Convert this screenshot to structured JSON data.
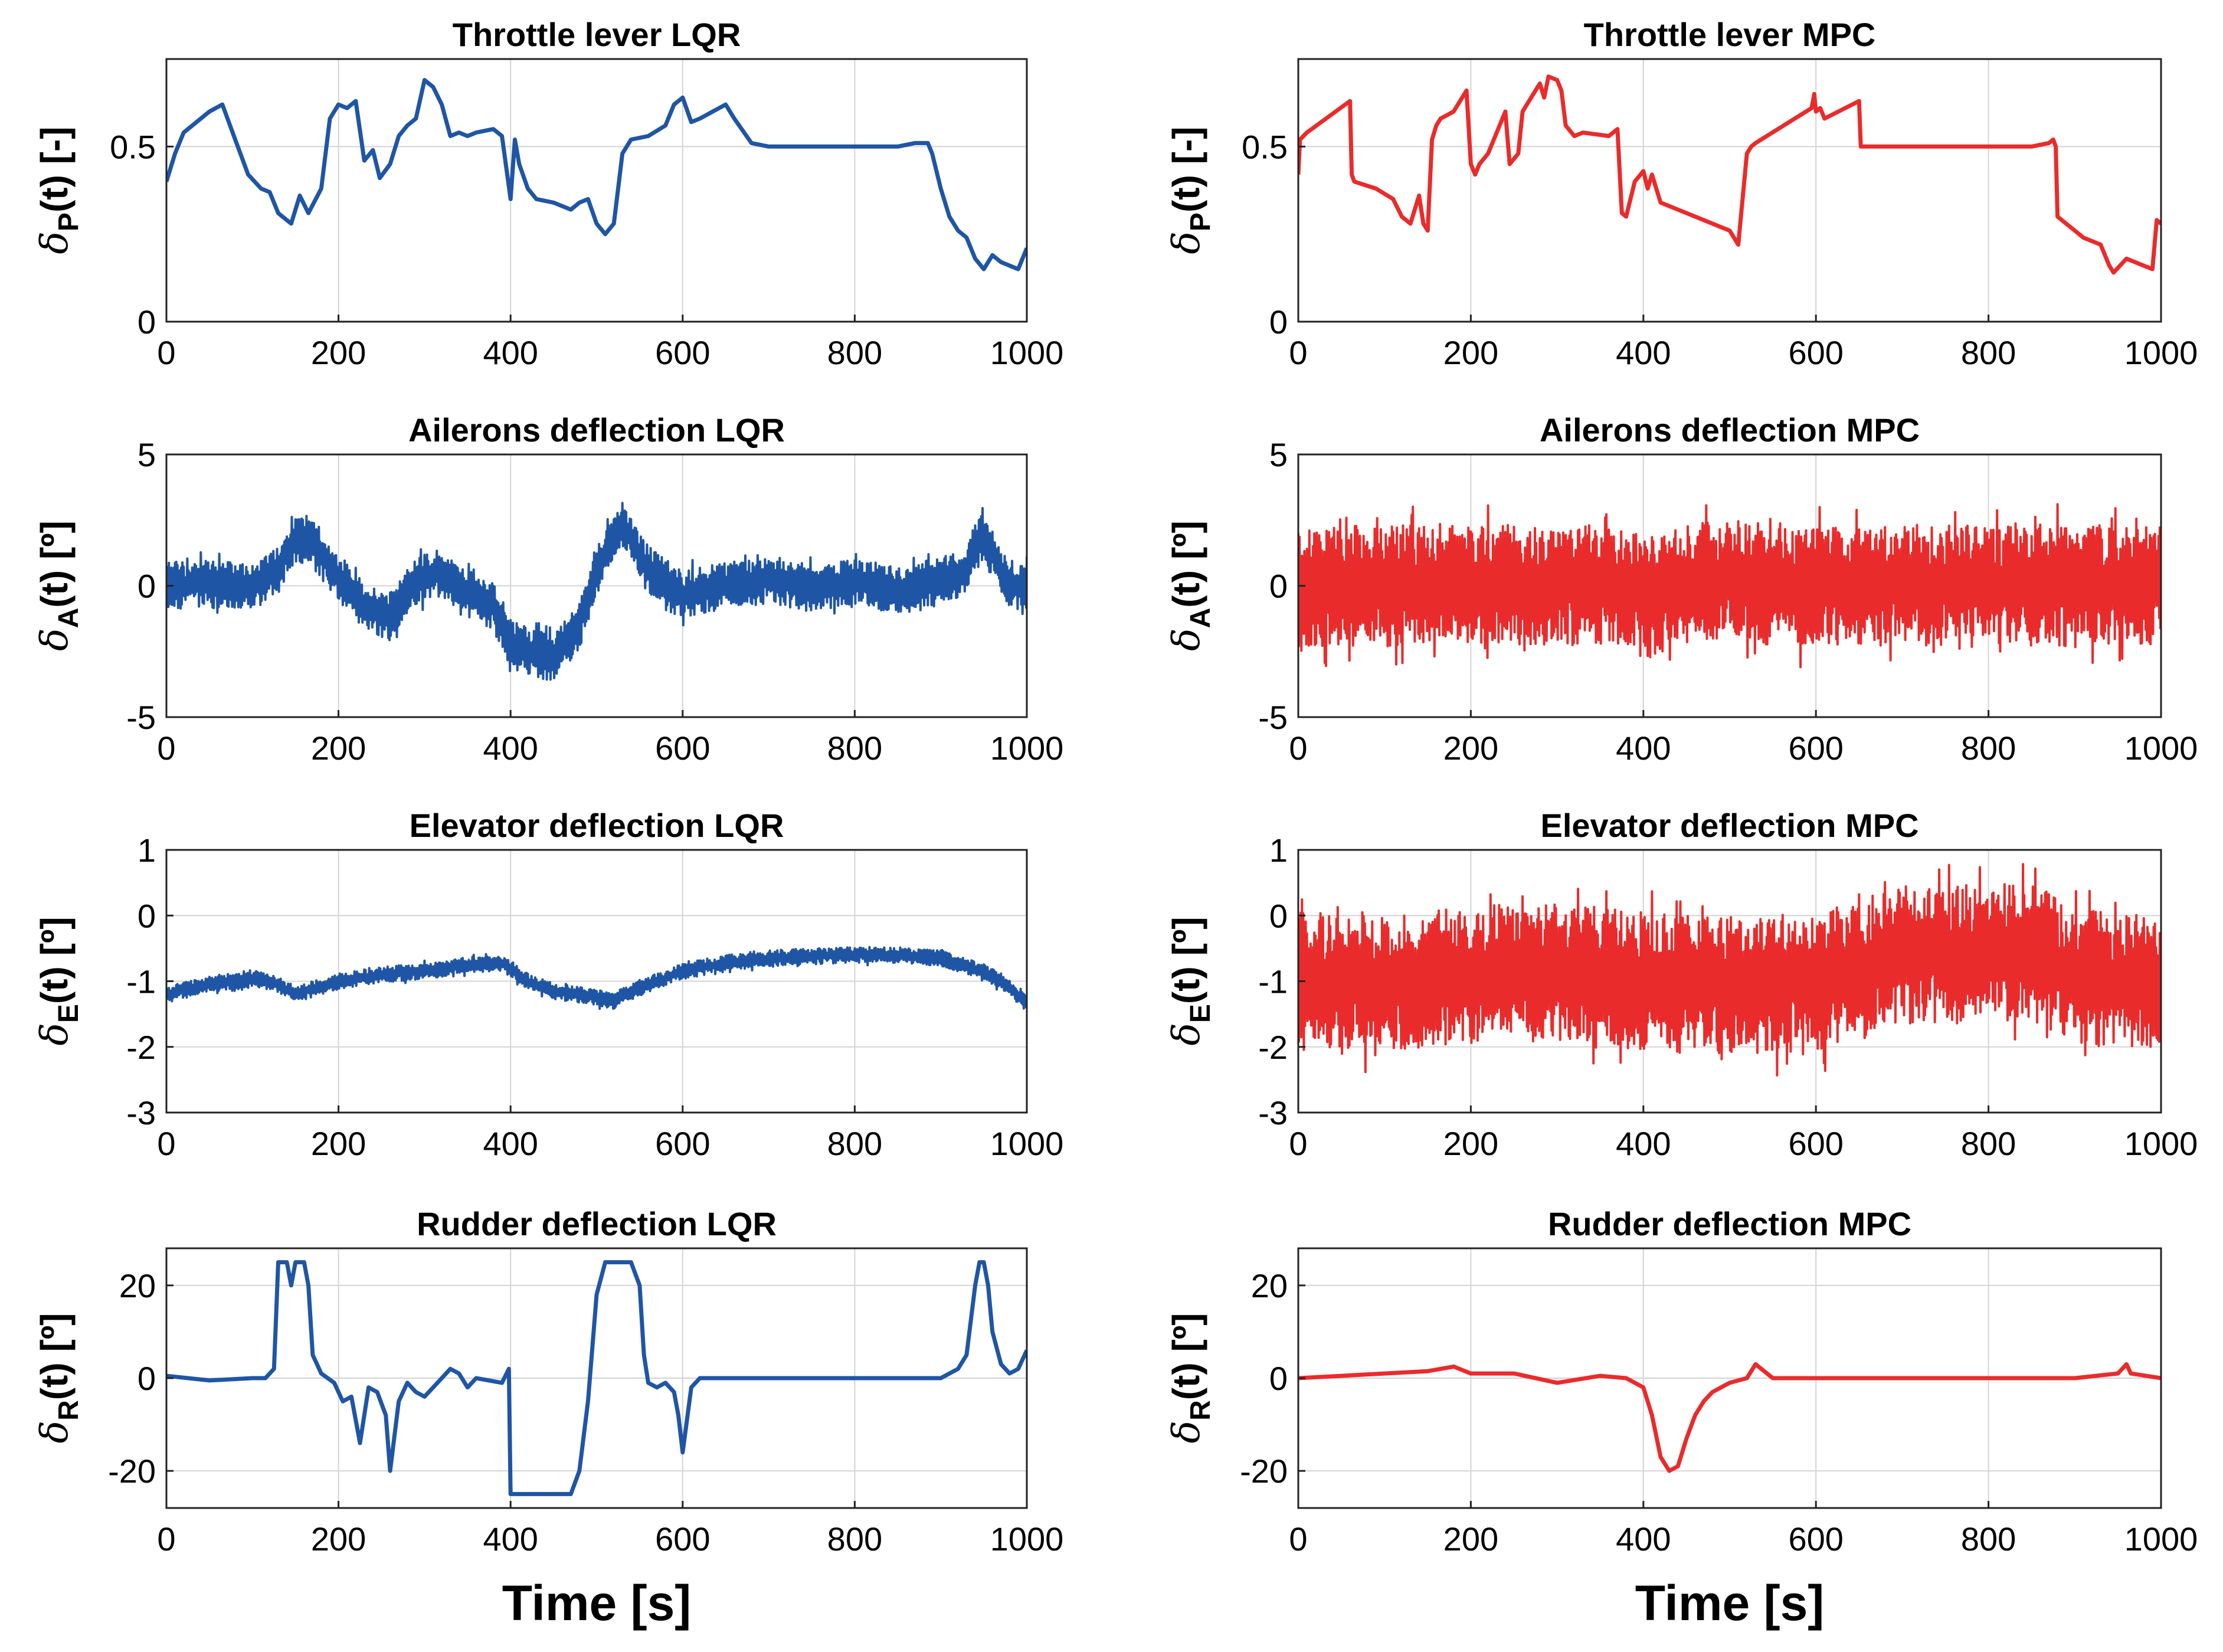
{
  "chart_data": [
    {
      "id": "p-lqr",
      "type": "line",
      "title": "Throttle lever LQR",
      "controller": "LQR",
      "ylabel": {
        "sym": "δ",
        "sub": "P",
        "rest": "(t) [-]"
      },
      "xlabel": "",
      "xlim": [
        0,
        1000
      ],
      "ylim": [
        0,
        0.75
      ],
      "xticks": [
        "0",
        "200",
        "400",
        "600",
        "800",
        "1000"
      ],
      "xtick_values": [
        0,
        200,
        400,
        600,
        800,
        1000
      ],
      "yticks": [
        "0",
        "0.5"
      ],
      "ytick_values": [
        0,
        0.5
      ],
      "grid": true,
      "series": [
        {
          "name": "LQR",
          "color": "#1f55a5",
          "x": [
            0,
            10,
            20,
            40,
            50,
            65,
            80,
            95,
            110,
            120,
            130,
            145,
            155,
            165,
            180,
            190,
            200,
            210,
            220,
            230,
            240,
            248,
            260,
            270,
            280,
            290,
            300,
            310,
            320,
            330,
            340,
            350,
            360,
            380,
            390,
            400,
            405,
            410,
            420,
            430,
            450,
            470,
            480,
            490,
            500,
            510,
            520,
            530,
            540,
            560,
            580,
            590,
            600,
            610,
            620,
            635,
            650,
            660,
            680,
            700,
            750,
            800,
            850,
            870,
            880,
            885,
            890,
            900,
            910,
            920,
            930,
            940,
            950,
            960,
            970,
            990,
            1000
          ],
          "y": [
            0.4,
            0.48,
            0.54,
            0.58,
            0.6,
            0.62,
            0.52,
            0.42,
            0.38,
            0.37,
            0.31,
            0.28,
            0.36,
            0.31,
            0.38,
            0.58,
            0.62,
            0.61,
            0.63,
            0.46,
            0.49,
            0.41,
            0.45,
            0.53,
            0.56,
            0.58,
            0.69,
            0.67,
            0.62,
            0.53,
            0.54,
            0.53,
            0.54,
            0.55,
            0.53,
            0.35,
            0.52,
            0.45,
            0.38,
            0.35,
            0.34,
            0.32,
            0.34,
            0.35,
            0.28,
            0.25,
            0.28,
            0.48,
            0.52,
            0.53,
            0.56,
            0.62,
            0.64,
            0.57,
            0.58,
            0.6,
            0.62,
            0.58,
            0.51,
            0.5,
            0.5,
            0.5,
            0.5,
            0.51,
            0.51,
            0.51,
            0.48,
            0.38,
            0.3,
            0.26,
            0.24,
            0.18,
            0.15,
            0.19,
            0.17,
            0.15,
            0.21
          ]
        }
      ]
    },
    {
      "id": "p-mpc",
      "type": "line",
      "title": "Throttle lever MPC",
      "controller": "MPC",
      "ylabel": {
        "sym": "δ",
        "sub": "P",
        "rest": "(t) [-]"
      },
      "xlabel": "",
      "xlim": [
        0,
        1000
      ],
      "ylim": [
        0,
        0.75
      ],
      "xticks": [
        "0",
        "200",
        "400",
        "600",
        "800",
        "1000"
      ],
      "xtick_values": [
        0,
        200,
        400,
        600,
        800,
        1000
      ],
      "yticks": [
        "0",
        "0.5"
      ],
      "ytick_values": [
        0,
        0.5
      ],
      "grid": true,
      "series": [
        {
          "name": "MPC",
          "color": "#ea2b2b",
          "x": [
            0,
            2,
            10,
            60,
            62,
            65,
            90,
            110,
            120,
            130,
            140,
            145,
            150,
            155,
            160,
            165,
            180,
            195,
            200,
            205,
            210,
            220,
            240,
            245,
            255,
            260,
            265,
            280,
            285,
            290,
            300,
            305,
            310,
            320,
            330,
            360,
            370,
            375,
            380,
            390,
            400,
            405,
            410,
            420,
            440,
            460,
            480,
            500,
            510,
            520,
            525,
            530,
            595,
            598,
            600,
            605,
            610,
            650,
            652,
            660,
            700,
            750,
            800,
            850,
            870,
            875,
            878,
            880,
            900,
            910,
            930,
            940,
            945,
            960,
            980,
            990,
            995,
            1000
          ],
          "y": [
            0.42,
            0.52,
            0.54,
            0.63,
            0.42,
            0.4,
            0.38,
            0.35,
            0.3,
            0.28,
            0.36,
            0.28,
            0.26,
            0.52,
            0.56,
            0.58,
            0.6,
            0.66,
            0.45,
            0.42,
            0.45,
            0.48,
            0.6,
            0.45,
            0.48,
            0.6,
            0.62,
            0.68,
            0.64,
            0.7,
            0.69,
            0.66,
            0.56,
            0.53,
            0.54,
            0.53,
            0.55,
            0.31,
            0.3,
            0.4,
            0.43,
            0.38,
            0.42,
            0.34,
            0.32,
            0.3,
            0.28,
            0.26,
            0.22,
            0.48,
            0.5,
            0.51,
            0.61,
            0.65,
            0.6,
            0.61,
            0.58,
            0.63,
            0.5,
            0.5,
            0.5,
            0.5,
            0.5,
            0.5,
            0.51,
            0.52,
            0.5,
            0.3,
            0.26,
            0.24,
            0.22,
            0.16,
            0.14,
            0.18,
            0.16,
            0.15,
            0.29,
            0.28
          ]
        }
      ]
    },
    {
      "id": "a-lqr",
      "type": "line",
      "title": "Ailerons deflection LQR",
      "controller": "LQR",
      "ylabel": {
        "sym": "δ",
        "sub": "A",
        "rest": "(t) [º]"
      },
      "xlabel": "",
      "xlim": [
        0,
        1000
      ],
      "ylim": [
        -5,
        5
      ],
      "xticks": [
        "0",
        "200",
        "400",
        "600",
        "800",
        "1000"
      ],
      "xtick_values": [
        0,
        200,
        400,
        600,
        800,
        1000
      ],
      "yticks": [
        "-5",
        "0",
        "5"
      ],
      "ytick_values": [
        -5,
        0,
        5
      ],
      "grid": true,
      "series": [
        {
          "name": "LQR",
          "color": "#1f55a5",
          "noise_amplitude": 0.9,
          "x": [
            0,
            50,
            100,
            130,
            150,
            170,
            200,
            230,
            260,
            290,
            320,
            350,
            380,
            400,
            420,
            450,
            480,
            500,
            520,
            530,
            560,
            600,
            650,
            700,
            750,
            800,
            850,
            900,
            930,
            945,
            960,
            980,
            1000
          ],
          "y": [
            0,
            0.1,
            0,
            0.6,
            1.8,
            1.6,
            0.3,
            -0.8,
            -1.2,
            0.2,
            0.5,
            -0.3,
            -0.8,
            -2.2,
            -2.5,
            -2.8,
            -1.5,
            0.5,
            2.0,
            2.3,
            0.6,
            -0.3,
            0,
            0.2,
            -0.1,
            0.1,
            -0.2,
            0.2,
            0.5,
            2.0,
            1.2,
            0,
            0
          ]
        }
      ]
    },
    {
      "id": "a-mpc",
      "type": "line",
      "title": "Ailerons deflection MPC",
      "controller": "MPC",
      "ylabel": {
        "sym": "δ",
        "sub": "A",
        "rest": "(t) [º]"
      },
      "xlabel": "",
      "xlim": [
        0,
        1000
      ],
      "ylim": [
        -5,
        5
      ],
      "xticks": [
        "0",
        "200",
        "400",
        "600",
        "800",
        "1000"
      ],
      "xtick_values": [
        0,
        200,
        400,
        600,
        800,
        1000
      ],
      "yticks": [
        "-5",
        "0",
        "5"
      ],
      "ytick_values": [
        -5,
        0,
        5
      ],
      "grid": true,
      "series": [
        {
          "name": "MPC",
          "color": "#ea2b2b",
          "noise_amplitude": 2.3,
          "x": [
            0,
            100,
            200,
            300,
            380,
            400,
            420,
            450,
            500,
            550,
            600,
            700,
            800,
            900,
            1000
          ],
          "y": [
            0,
            0,
            0.1,
            0,
            0,
            -0.5,
            -0.3,
            0.1,
            0.3,
            0,
            0,
            0,
            0,
            0,
            0
          ]
        }
      ]
    },
    {
      "id": "e-lqr",
      "type": "line",
      "title": "Elevator deflection LQR",
      "controller": "LQR",
      "ylabel": {
        "sym": "δ",
        "sub": "E",
        "rest": "(t) [º]"
      },
      "xlabel": "",
      "xlim": [
        0,
        1000
      ],
      "ylim": [
        -3,
        1
      ],
      "xticks": [
        "0",
        "200",
        "400",
        "600",
        "800",
        "1000"
      ],
      "xtick_values": [
        0,
        200,
        400,
        600,
        800,
        1000
      ],
      "yticks": [
        "-3",
        "-2",
        "-1",
        "0",
        "1"
      ],
      "ytick_values": [
        -3,
        -2,
        -1,
        0,
        1
      ],
      "grid": true,
      "series": [
        {
          "name": "LQR",
          "color": "#1f55a5",
          "noise_amplitude": 0.12,
          "x": [
            0,
            50,
            100,
            130,
            150,
            200,
            250,
            300,
            350,
            390,
            420,
            450,
            500,
            520,
            550,
            600,
            650,
            700,
            750,
            800,
            850,
            900,
            950,
            980,
            1000
          ],
          "y": [
            -1.2,
            -1.05,
            -0.95,
            -1.05,
            -1.2,
            -1.0,
            -0.9,
            -0.85,
            -0.75,
            -0.72,
            -1.0,
            -1.15,
            -1.25,
            -1.3,
            -1.1,
            -0.85,
            -0.72,
            -0.65,
            -0.62,
            -0.6,
            -0.6,
            -0.65,
            -0.85,
            -1.1,
            -1.35
          ]
        }
      ]
    },
    {
      "id": "e-mpc",
      "type": "line",
      "title": "Elevator deflection MPC",
      "controller": "MPC",
      "ylabel": {
        "sym": "δ",
        "sub": "E",
        "rest": "(t) [º]"
      },
      "xlabel": "",
      "xlim": [
        0,
        1000
      ],
      "ylim": [
        -3,
        1
      ],
      "xticks": [
        "0",
        "200",
        "400",
        "600",
        "800",
        "1000"
      ],
      "xtick_values": [
        0,
        200,
        400,
        600,
        800,
        1000
      ],
      "yticks": [
        "-3",
        "-2",
        "-1",
        "0",
        "1"
      ],
      "ytick_values": [
        -3,
        -2,
        -1,
        0,
        1
      ],
      "grid": true,
      "series": [
        {
          "name": "MPC",
          "color": "#ea2b2b",
          "noise_amplitude": 1.05,
          "x": [
            0,
            100,
            200,
            300,
            400,
            500,
            600,
            700,
            800,
            850,
            900,
            1000
          ],
          "y": [
            -1.0,
            -1.0,
            -0.9,
            -0.85,
            -1.0,
            -1.1,
            -1.0,
            -0.6,
            -0.55,
            -0.6,
            -0.9,
            -1.1
          ]
        }
      ]
    },
    {
      "id": "r-lqr",
      "type": "line",
      "title": "Rudder deflection LQR",
      "controller": "LQR",
      "ylabel": {
        "sym": "δ",
        "sub": "R",
        "rest": "(t) [º]"
      },
      "xlabel": "Time [s]",
      "xlim": [
        0,
        1000
      ],
      "ylim": [
        -28,
        28
      ],
      "xticks": [
        "0",
        "200",
        "400",
        "600",
        "800",
        "1000"
      ],
      "xtick_values": [
        0,
        200,
        400,
        600,
        800,
        1000
      ],
      "yticks": [
        "-20",
        "0",
        "20"
      ],
      "ytick_values": [
        -20,
        0,
        20
      ],
      "grid": true,
      "series": [
        {
          "name": "LQR",
          "color": "#1f55a5",
          "x": [
            0,
            50,
            100,
            115,
            125,
            130,
            140,
            145,
            150,
            160,
            165,
            170,
            180,
            195,
            205,
            215,
            225,
            235,
            245,
            255,
            260,
            270,
            280,
            290,
            300,
            310,
            320,
            330,
            340,
            350,
            360,
            390,
            398,
            400,
            402,
            460,
            470,
            480,
            490,
            500,
            510,
            530,
            540,
            550,
            555,
            560,
            570,
            580,
            590,
            595,
            600,
            610,
            620,
            650,
            700,
            750,
            800,
            850,
            900,
            920,
            930,
            940,
            945,
            950,
            955,
            960,
            970,
            980,
            990,
            1000
          ],
          "y": [
            0.5,
            -0.5,
            0,
            0,
            2,
            25,
            25,
            20,
            25,
            25,
            20,
            5,
            1,
            -1,
            -5,
            -4,
            -14,
            -2,
            -3,
            -8,
            -20,
            -5,
            -1,
            -3,
            -4,
            -2,
            0,
            2,
            1,
            -2,
            0,
            -1,
            2,
            -25,
            -25,
            -25,
            -25,
            -20,
            -5,
            18,
            25,
            25,
            25,
            20,
            5,
            -1,
            -2,
            -1,
            -3,
            -8,
            -16,
            -2,
            0,
            0,
            0,
            0,
            0,
            0,
            0,
            2,
            5,
            20,
            25,
            25,
            20,
            10,
            3,
            1,
            2,
            6
          ]
        }
      ]
    },
    {
      "id": "r-mpc",
      "type": "line",
      "title": "Rudder deflection MPC",
      "controller": "MPC",
      "ylabel": {
        "sym": "δ",
        "sub": "R",
        "rest": "(t) [º]"
      },
      "xlabel": "Time [s]",
      "xlim": [
        0,
        1000
      ],
      "ylim": [
        -28,
        28
      ],
      "xticks": [
        "0",
        "200",
        "400",
        "600",
        "800",
        "1000"
      ],
      "xtick_values": [
        0,
        200,
        400,
        600,
        800,
        1000
      ],
      "yticks": [
        "-20",
        "0",
        "20"
      ],
      "ytick_values": [
        -20,
        0,
        20
      ],
      "grid": true,
      "series": [
        {
          "name": "MPC",
          "color": "#ea2b2b",
          "x": [
            0,
            50,
            100,
            150,
            180,
            200,
            250,
            300,
            350,
            380,
            400,
            410,
            420,
            430,
            440,
            450,
            460,
            470,
            480,
            500,
            520,
            530,
            550,
            600,
            700,
            800,
            900,
            950,
            960,
            965,
            1000
          ],
          "y": [
            0,
            0.5,
            1,
            1.5,
            2.5,
            1,
            1,
            -1,
            0.5,
            0,
            -2,
            -8,
            -17,
            -20,
            -19,
            -13,
            -8,
            -5,
            -3,
            -1,
            0,
            3,
            0,
            0,
            0,
            0,
            0,
            1,
            3,
            1,
            0
          ]
        }
      ]
    }
  ]
}
